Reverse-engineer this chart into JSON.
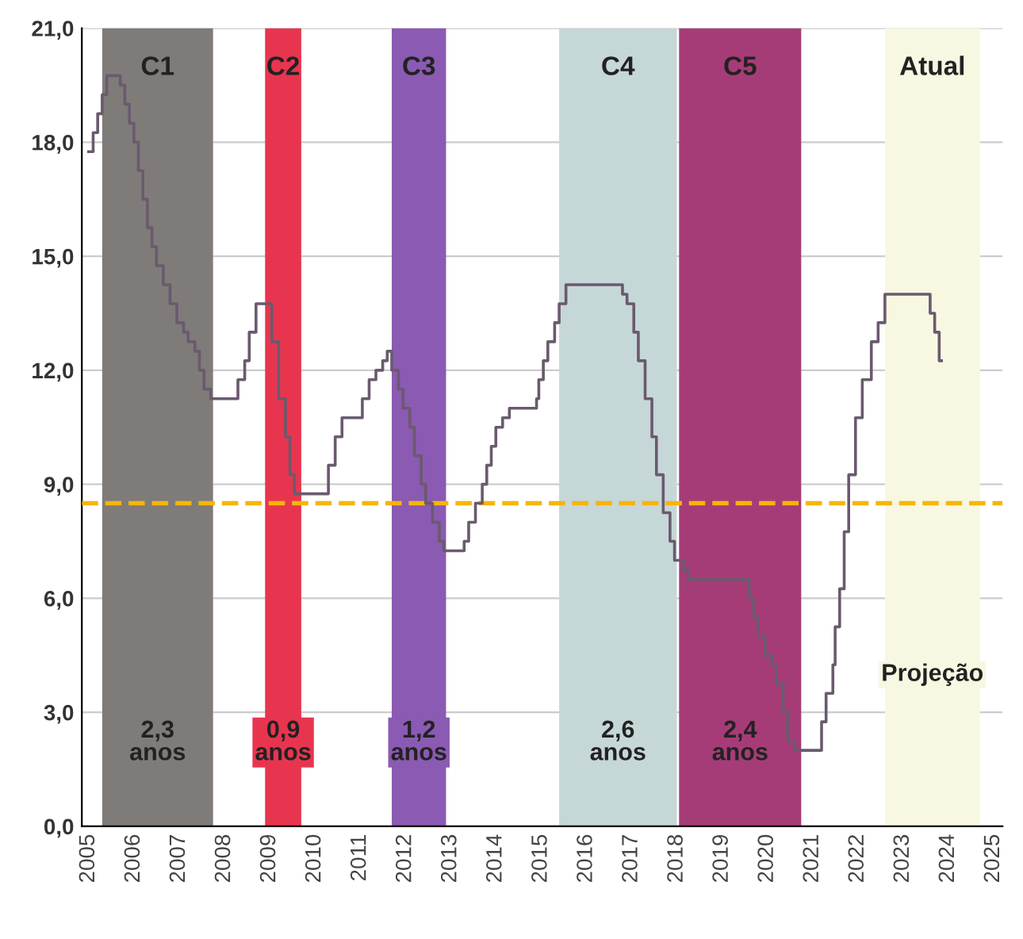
{
  "chart_data": {
    "type": "step",
    "x": [
      2005.0,
      2005.1,
      2005.2,
      2005.3,
      2005.4,
      2005.7,
      2005.8,
      2005.9,
      2006.0,
      2006.1,
      2006.2,
      2006.3,
      2006.4,
      2006.5,
      2006.65,
      2006.8,
      2006.95,
      2007.1,
      2007.2,
      2007.35,
      2007.45,
      2007.55,
      2007.7,
      2008.3,
      2008.45,
      2008.55,
      2008.7,
      2009.05,
      2009.2,
      2009.35,
      2009.45,
      2009.55,
      2010.3,
      2010.45,
      2010.6,
      2011.05,
      2011.2,
      2011.35,
      2011.5,
      2011.6,
      2011.7,
      2011.85,
      2011.95,
      2012.1,
      2012.2,
      2012.35,
      2012.45,
      2012.6,
      2012.75,
      2012.85,
      2013.3,
      2013.4,
      2013.55,
      2013.7,
      2013.8,
      2013.9,
      2014.0,
      2014.15,
      2014.3,
      2014.9,
      2014.95,
      2015.05,
      2015.15,
      2015.3,
      2015.4,
      2015.55,
      2016.8,
      2016.9,
      2017.05,
      2017.15,
      2017.3,
      2017.45,
      2017.55,
      2017.7,
      2017.85,
      2017.95,
      2018.15,
      2018.25,
      2019.6,
      2019.7,
      2019.8,
      2019.95,
      2020.1,
      2020.2,
      2020.35,
      2020.45,
      2020.6,
      2021.2,
      2021.3,
      2021.45,
      2021.5,
      2021.6,
      2021.7,
      2021.8,
      2021.95,
      2022.1,
      2022.3,
      2022.45,
      2022.6,
      2023.6,
      2023.7,
      2023.8,
      2023.85
    ],
    "series": [
      {
        "color": "#6a5a6e",
        "values": [
          17.75,
          18.25,
          18.75,
          19.25,
          19.75,
          19.5,
          19.0,
          18.5,
          18.0,
          17.25,
          16.5,
          15.75,
          15.25,
          14.75,
          14.25,
          13.75,
          13.25,
          13.0,
          12.75,
          12.5,
          12.0,
          11.5,
          11.25,
          11.75,
          12.25,
          13.0,
          13.75,
          12.75,
          11.25,
          10.25,
          9.25,
          8.75,
          9.5,
          10.25,
          10.75,
          11.25,
          11.75,
          12.0,
          12.25,
          12.5,
          12.0,
          11.5,
          11.0,
          10.5,
          9.75,
          9.0,
          8.5,
          8.0,
          7.5,
          7.25,
          7.5,
          8.0,
          8.5,
          9.0,
          9.5,
          10.0,
          10.5,
          10.75,
          11.0,
          11.25,
          11.75,
          12.25,
          12.75,
          13.25,
          13.75,
          14.25,
          14.0,
          13.75,
          13.0,
          12.25,
          11.25,
          10.25,
          9.25,
          8.25,
          7.5,
          7.0,
          6.75,
          6.5,
          6.0,
          5.5,
          5.0,
          4.5,
          4.25,
          3.75,
          3.0,
          2.25,
          2.0,
          2.75,
          3.5,
          4.25,
          5.25,
          6.25,
          7.75,
          9.25,
          10.75,
          11.75,
          12.75,
          13.25,
          14.0,
          13.5,
          13.0,
          12.25,
          12.25
        ]
      }
    ],
    "xlim": [
      2004.85,
      2025.2
    ],
    "ylim": [
      0,
      21
    ],
    "xticks": [
      2005,
      2006,
      2007,
      2008,
      2009,
      2010,
      2011,
      2012,
      2013,
      2014,
      2015,
      2016,
      2017,
      2018,
      2019,
      2020,
      2021,
      2022,
      2023,
      2024,
      2025
    ],
    "yticks": [
      {
        "value": 0,
        "label": "0,0"
      },
      {
        "value": 3,
        "label": "3,0"
      },
      {
        "value": 6,
        "label": "6,0"
      },
      {
        "value": 9,
        "label": "9,0"
      },
      {
        "value": 12,
        "label": "12,0"
      },
      {
        "value": 15,
        "label": "15,0"
      },
      {
        "value": 18,
        "label": "18,0"
      },
      {
        "value": 21,
        "label": "21,0"
      }
    ],
    "grid": "y",
    "legend": false,
    "bands": [
      {
        "axis": "x",
        "from": 2005.3,
        "to": 2007.75,
        "label": "C1",
        "color": "#7f7b79"
      },
      {
        "axis": "x",
        "from": 2008.9,
        "to": 2009.7,
        "label": "C2",
        "color": "#e8354f"
      },
      {
        "axis": "x",
        "from": 2011.7,
        "to": 2012.9,
        "label": "C3",
        "color": "#8b5ab2"
      },
      {
        "axis": "x",
        "from": 2015.4,
        "to": 2018.0,
        "label": "C4",
        "color": "#c6d7d8"
      },
      {
        "axis": "x",
        "from": 2018.05,
        "to": 2020.75,
        "label": "C5",
        "color": "#a63c77"
      },
      {
        "axis": "x",
        "from": 2022.6,
        "to": 2024.7,
        "label": "Atual",
        "color": "#f8f8e2"
      }
    ],
    "ref_lines": [
      {
        "axis": "y",
        "value": 8.5,
        "color": "#f5b50a",
        "line_style": "dashed"
      }
    ],
    "annotations": [
      "2,3\nanos",
      "0,9\nanos",
      "1,2\nanos",
      "2,6\nanos",
      "2,4\nanos",
      "Projeção"
    ]
  }
}
